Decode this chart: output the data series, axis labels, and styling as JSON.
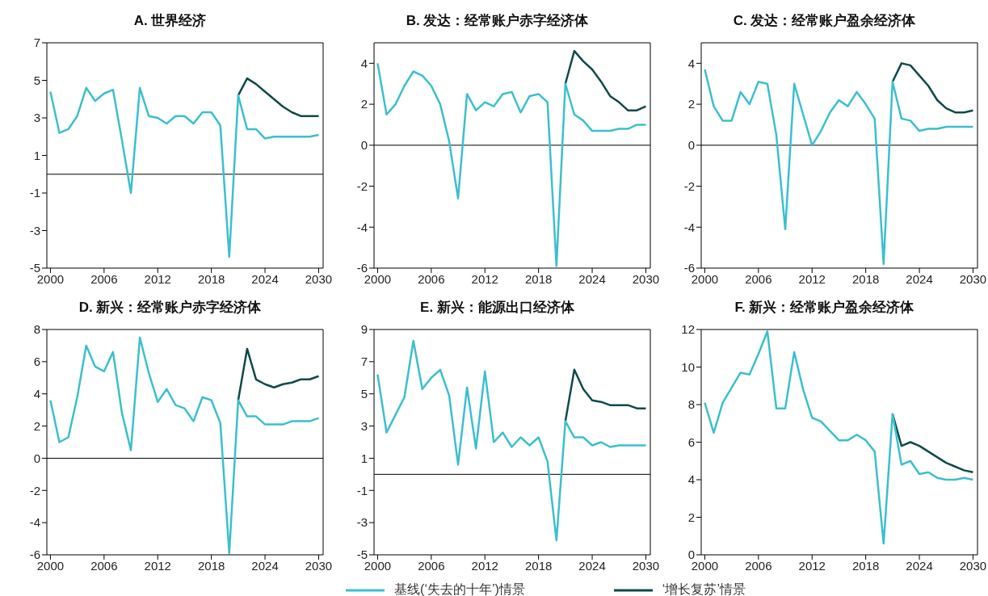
{
  "chart_data": [
    {
      "type": "line",
      "title": "A. 世界经济",
      "x": [
        2000,
        2001,
        2002,
        2003,
        2004,
        2005,
        2006,
        2007,
        2008,
        2009,
        2010,
        2011,
        2012,
        2013,
        2014,
        2015,
        2016,
        2017,
        2018,
        2019,
        2020,
        2021,
        2022,
        2023,
        2024,
        2025,
        2026,
        2027,
        2028,
        2029,
        2030
      ],
      "xlim": [
        1999.6,
        2030.5
      ],
      "xticks": [
        2000,
        2006,
        2012,
        2018,
        2024,
        2030
      ],
      "ylim": [
        -5,
        7
      ],
      "yticks": [
        -5,
        -3,
        -1,
        1,
        3,
        5,
        7
      ],
      "ref_lines": [
        {
          "axis": "y",
          "value": 0,
          "color": "#000000"
        }
      ],
      "legend": "bottom",
      "series": [
        {
          "name": "‘增长复苏’情景",
          "color": "#0f4a4a",
          "x": [
            2021,
            2022,
            2023,
            2024,
            2025,
            2026,
            2027,
            2028,
            2029,
            2030
          ],
          "values": [
            4.2,
            5.1,
            4.8,
            4.4,
            4.0,
            3.6,
            3.3,
            3.1,
            3.1,
            3.1
          ]
        },
        {
          "name": "基线(‘失去的十年’)情景",
          "color": "#3bbfcf",
          "values": [
            4.4,
            2.2,
            2.4,
            3.1,
            4.6,
            3.9,
            4.3,
            4.5,
            1.8,
            -1.0,
            4.6,
            3.1,
            3.0,
            2.7,
            3.1,
            3.1,
            2.7,
            3.3,
            3.3,
            2.6,
            -4.4,
            4.2,
            2.4,
            2.4,
            1.9,
            2.0,
            2.0,
            2.0,
            2.0,
            2.0,
            2.1
          ]
        }
      ]
    },
    {
      "type": "line",
      "title": "B. 发达：经常账户赤字经济体",
      "x": [
        2000,
        2001,
        2002,
        2003,
        2004,
        2005,
        2006,
        2007,
        2008,
        2009,
        2010,
        2011,
        2012,
        2013,
        2014,
        2015,
        2016,
        2017,
        2018,
        2019,
        2020,
        2021,
        2022,
        2023,
        2024,
        2025,
        2026,
        2027,
        2028,
        2029,
        2030
      ],
      "xlim": [
        1999.6,
        2030.5
      ],
      "xticks": [
        2000,
        2006,
        2012,
        2018,
        2024,
        2030
      ],
      "ylim": [
        -6,
        5
      ],
      "yticks": [
        -6,
        -4,
        -2,
        0,
        2,
        4
      ],
      "ref_lines": [
        {
          "axis": "y",
          "value": 0,
          "color": "#000000"
        }
      ],
      "series": [
        {
          "color": "#0f4a4a",
          "x": [
            2021,
            2022,
            2023,
            2024,
            2025,
            2026,
            2027,
            2028,
            2029,
            2030
          ],
          "values": [
            3.0,
            4.6,
            4.1,
            3.7,
            3.1,
            2.4,
            2.1,
            1.7,
            1.7,
            1.9
          ]
        },
        {
          "color": "#3bbfcf",
          "values": [
            4.0,
            1.5,
            2.0,
            2.9,
            3.6,
            3.4,
            2.9,
            2.0,
            0.2,
            -2.6,
            2.5,
            1.7,
            2.1,
            1.9,
            2.5,
            2.6,
            1.6,
            2.4,
            2.5,
            2.1,
            -5.9,
            3.0,
            1.5,
            1.2,
            0.7,
            0.7,
            0.7,
            0.8,
            0.8,
            1.0,
            1.0
          ]
        }
      ]
    },
    {
      "type": "line",
      "title": "C. 发达：经常账户盈余经济体",
      "x": [
        2000,
        2001,
        2002,
        2003,
        2004,
        2005,
        2006,
        2007,
        2008,
        2009,
        2010,
        2011,
        2012,
        2013,
        2014,
        2015,
        2016,
        2017,
        2018,
        2019,
        2020,
        2021,
        2022,
        2023,
        2024,
        2025,
        2026,
        2027,
        2028,
        2029,
        2030
      ],
      "xlim": [
        1999.6,
        2030.5
      ],
      "xticks": [
        2000,
        2006,
        2012,
        2018,
        2024,
        2030
      ],
      "ylim": [
        -6,
        5
      ],
      "yticks": [
        -6,
        -4,
        -2,
        0,
        2,
        4
      ],
      "ref_lines": [
        {
          "axis": "y",
          "value": 0,
          "color": "#000000"
        }
      ],
      "series": [
        {
          "color": "#0f4a4a",
          "x": [
            2021,
            2022,
            2023,
            2024,
            2025,
            2026,
            2027,
            2028,
            2029,
            2030
          ],
          "values": [
            3.1,
            4.0,
            3.9,
            3.4,
            2.9,
            2.2,
            1.8,
            1.6,
            1.6,
            1.7
          ]
        },
        {
          "color": "#3bbfcf",
          "values": [
            3.7,
            1.9,
            1.2,
            1.2,
            2.6,
            2.0,
            3.1,
            3.0,
            0.5,
            -4.1,
            3.0,
            1.5,
            0.0,
            0.7,
            1.6,
            2.2,
            1.9,
            2.6,
            2.0,
            1.3,
            -5.8,
            3.1,
            1.3,
            1.2,
            0.7,
            0.8,
            0.8,
            0.9,
            0.9,
            0.9,
            0.9
          ]
        }
      ]
    },
    {
      "type": "line",
      "title": "D. 新兴：经常账户赤字经济体",
      "x": [
        2000,
        2001,
        2002,
        2003,
        2004,
        2005,
        2006,
        2007,
        2008,
        2009,
        2010,
        2011,
        2012,
        2013,
        2014,
        2015,
        2016,
        2017,
        2018,
        2019,
        2020,
        2021,
        2022,
        2023,
        2024,
        2025,
        2026,
        2027,
        2028,
        2029,
        2030
      ],
      "xlim": [
        1999.6,
        2030.5
      ],
      "xticks": [
        2000,
        2006,
        2012,
        2018,
        2024,
        2030
      ],
      "ylim": [
        -6,
        8
      ],
      "yticks": [
        -6,
        -4,
        -2,
        0,
        2,
        4,
        6,
        8
      ],
      "ref_lines": [
        {
          "axis": "y",
          "value": 0,
          "color": "#000000"
        }
      ],
      "series": [
        {
          "color": "#0f4a4a",
          "x": [
            2021,
            2022,
            2023,
            2024,
            2025,
            2026,
            2027,
            2028,
            2029,
            2030
          ],
          "values": [
            3.6,
            6.8,
            4.9,
            4.6,
            4.4,
            4.6,
            4.7,
            4.9,
            4.9,
            5.1
          ]
        },
        {
          "color": "#3bbfcf",
          "values": [
            3.6,
            1.0,
            1.3,
            3.8,
            7.0,
            5.7,
            5.4,
            6.6,
            2.8,
            0.5,
            7.5,
            5.3,
            3.5,
            4.3,
            3.3,
            3.1,
            2.3,
            3.8,
            3.6,
            2.2,
            -5.9,
            3.6,
            2.6,
            2.6,
            2.1,
            2.1,
            2.1,
            2.3,
            2.3,
            2.3,
            2.5
          ]
        }
      ]
    },
    {
      "type": "line",
      "title": "E. 新兴：能源出口经济体",
      "x": [
        2000,
        2001,
        2002,
        2003,
        2004,
        2005,
        2006,
        2007,
        2008,
        2009,
        2010,
        2011,
        2012,
        2013,
        2014,
        2015,
        2016,
        2017,
        2018,
        2019,
        2020,
        2021,
        2022,
        2023,
        2024,
        2025,
        2026,
        2027,
        2028,
        2029,
        2030
      ],
      "xlim": [
        1999.6,
        2030.5
      ],
      "xticks": [
        2000,
        2006,
        2012,
        2018,
        2024,
        2030
      ],
      "ylim": [
        -5,
        9
      ],
      "yticks": [
        -5,
        -3,
        -1,
        1,
        3,
        5,
        7,
        9
      ],
      "ref_lines": [
        {
          "axis": "y",
          "value": 0,
          "color": "#000000"
        }
      ],
      "series": [
        {
          "color": "#0f4a4a",
          "x": [
            2021,
            2022,
            2023,
            2024,
            2025,
            2026,
            2027,
            2028,
            2029,
            2030
          ],
          "values": [
            3.3,
            6.5,
            5.3,
            4.6,
            4.5,
            4.3,
            4.3,
            4.3,
            4.1,
            4.1
          ]
        },
        {
          "color": "#3bbfcf",
          "values": [
            6.2,
            2.6,
            3.7,
            4.8,
            8.3,
            5.3,
            6.0,
            6.5,
            4.9,
            0.6,
            5.4,
            1.6,
            6.4,
            2.0,
            2.6,
            1.7,
            2.3,
            1.8,
            2.3,
            0.8,
            -4.1,
            3.3,
            2.3,
            2.3,
            1.8,
            2.0,
            1.7,
            1.8,
            1.8,
            1.8,
            1.8
          ]
        }
      ]
    },
    {
      "type": "line",
      "title": "F. 新兴：经常账户盈余经济体",
      "x": [
        2000,
        2001,
        2002,
        2003,
        2004,
        2005,
        2006,
        2007,
        2008,
        2009,
        2010,
        2011,
        2012,
        2013,
        2014,
        2015,
        2016,
        2017,
        2018,
        2019,
        2020,
        2021,
        2022,
        2023,
        2024,
        2025,
        2026,
        2027,
        2028,
        2029,
        2030
      ],
      "xlim": [
        1999.6,
        2030.5
      ],
      "xticks": [
        2000,
        2006,
        2012,
        2018,
        2024,
        2030
      ],
      "ylim": [
        0,
        12
      ],
      "yticks": [
        0,
        2,
        4,
        6,
        8,
        10,
        12
      ],
      "series": [
        {
          "color": "#0f4a4a",
          "x": [
            2021,
            2022,
            2023,
            2024,
            2025,
            2026,
            2027,
            2028,
            2029,
            2030
          ],
          "values": [
            7.5,
            5.8,
            6.0,
            5.8,
            5.5,
            5.2,
            4.9,
            4.7,
            4.5,
            4.4
          ]
        },
        {
          "color": "#3bbfcf",
          "values": [
            8.1,
            6.5,
            8.1,
            8.9,
            9.7,
            9.6,
            10.7,
            11.9,
            7.8,
            7.8,
            10.8,
            8.8,
            7.3,
            7.1,
            6.6,
            6.1,
            6.1,
            6.4,
            6.1,
            5.5,
            0.6,
            7.5,
            4.8,
            5.0,
            4.3,
            4.4,
            4.1,
            4.0,
            4.0,
            4.1,
            4.0
          ]
        }
      ]
    }
  ]
}
